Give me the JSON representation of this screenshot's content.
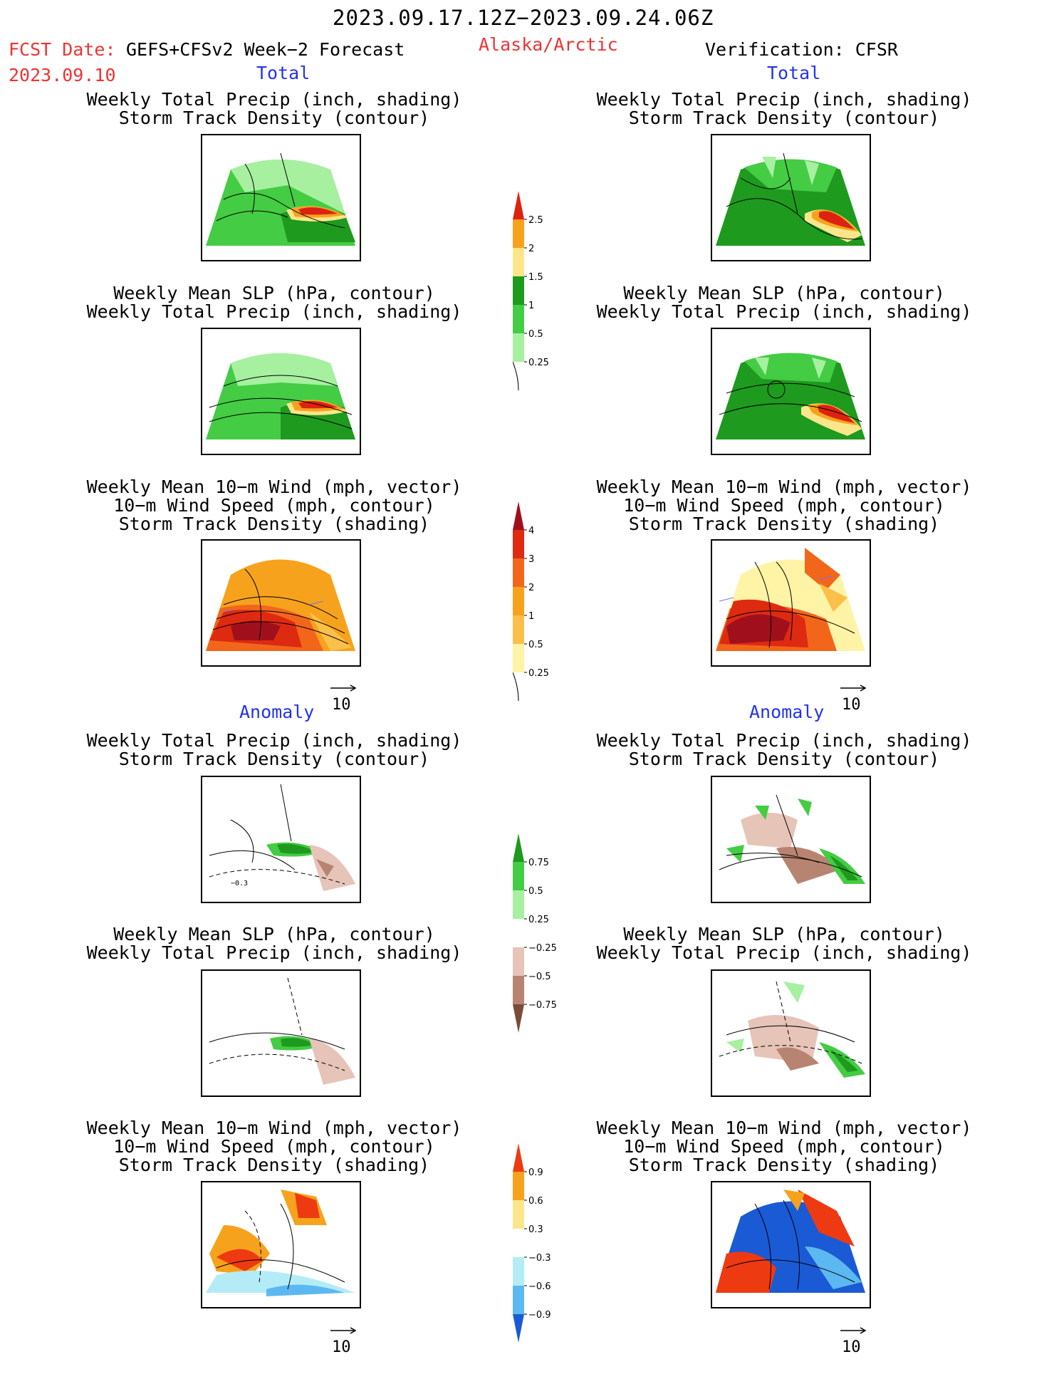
{
  "header": {
    "date_range": "2023.09.17.12Z−2023.09.24.06Z",
    "fcst_label": "FCST Date:",
    "fcst_model": "GEFS+CFSv2 Week−2 Forecast",
    "fcst_date": "2023.09.10",
    "region": "Alaska/Arctic",
    "verification": "Verification: CFSR"
  },
  "sections": {
    "total": "Total",
    "anomaly": "Anomaly"
  },
  "panel_titles": {
    "precip_storm": [
      "Weekly Total Precip (inch, shading)",
      "Storm Track Density (contour)"
    ],
    "slp_precip": [
      "Weekly Mean SLP (hPa, contour)",
      "Weekly Total Precip (inch, shading)"
    ],
    "wind_storm": [
      "Weekly Mean 10−m Wind (mph, vector)",
      "10−m Wind Speed (mph, contour)",
      "Storm Track Density (shading)"
    ]
  },
  "vector_ref": "10",
  "colorbars": {
    "total_precip": {
      "labels": [
        "2.5",
        "2",
        "1.5",
        "1",
        "0.5",
        "0.25"
      ],
      "colors": [
        "#dd2211",
        "#f7a21c",
        "#fde68a",
        "#1e9a1e",
        "#44cc44",
        "#a6f0a0"
      ]
    },
    "total_storm": {
      "labels": [
        "4",
        "3",
        "2",
        "1",
        "0.5",
        "0.25"
      ],
      "colors": [
        "#a0101c",
        "#dd2a11",
        "#f2661c",
        "#f7a21c",
        "#fbc04a",
        "#fff3a6"
      ]
    },
    "anom_precip": {
      "labels": [
        "0.75",
        "0.5",
        "0.25",
        "−0.25",
        "−0.5",
        "−0.75"
      ],
      "colors": [
        "#1e9a1e",
        "#44cc44",
        "#a6f0a0",
        "#ffffff",
        "#e6c4b8",
        "#b88472",
        "#7a4a3a"
      ]
    },
    "anom_storm": {
      "labels": [
        "0.9",
        "0.6",
        "0.3",
        "−0.3",
        "−0.6",
        "−0.9"
      ],
      "colors": [
        "#ee3a11",
        "#f7a21c",
        "#fde68a",
        "#ffffff",
        "#b3ecf7",
        "#5cb8f0",
        "#1a5ad4"
      ]
    },
    "tick_contour_label": "−0.3"
  }
}
